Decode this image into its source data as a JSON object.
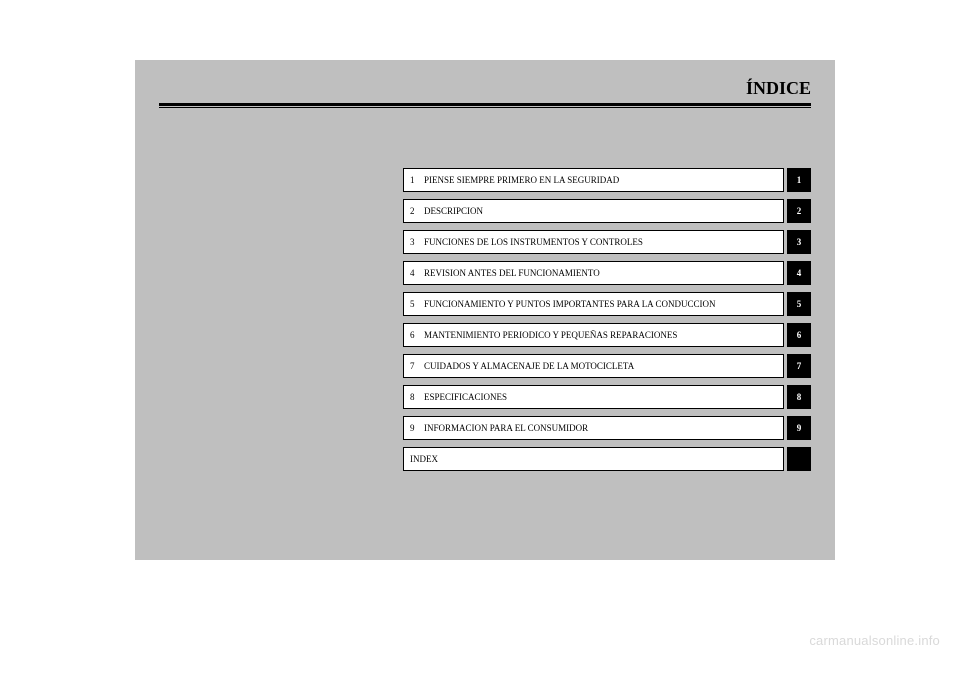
{
  "title": "ÍNDICE",
  "watermark": "carmanualsonline.info",
  "rows": [
    {
      "num": "1",
      "text": "PIENSE SIEMPRE PRIMERO EN LA SEGURIDAD",
      "tab": "1"
    },
    {
      "num": "2",
      "text": "DESCRIPCION",
      "tab": "2"
    },
    {
      "num": "3",
      "text": "FUNCIONES DE LOS INSTRUMENTOS Y CONTROLES",
      "tab": "3"
    },
    {
      "num": "4",
      "text": "REVISION ANTES DEL FUNCIONAMIENTO",
      "tab": "4"
    },
    {
      "num": "5",
      "text": "FUNCIONAMIENTO Y PUNTOS IMPORTANTES PARA LA CONDUCCION",
      "tab": "5"
    },
    {
      "num": "6",
      "text": "MANTENIMIENTO PERIODICO Y PEQUEÑAS REPARACIONES",
      "tab": "6"
    },
    {
      "num": "7",
      "text": "CUIDADOS Y ALMACENAJE DE LA MOTOCICLETA",
      "tab": "7"
    },
    {
      "num": "8",
      "text": "ESPECIFICACIONES",
      "tab": "8"
    },
    {
      "num": "9",
      "text": "INFORMACION PARA EL CONSUMIDOR",
      "tab": "9"
    },
    {
      "num": "",
      "text": "INDEX",
      "tab": ""
    }
  ]
}
